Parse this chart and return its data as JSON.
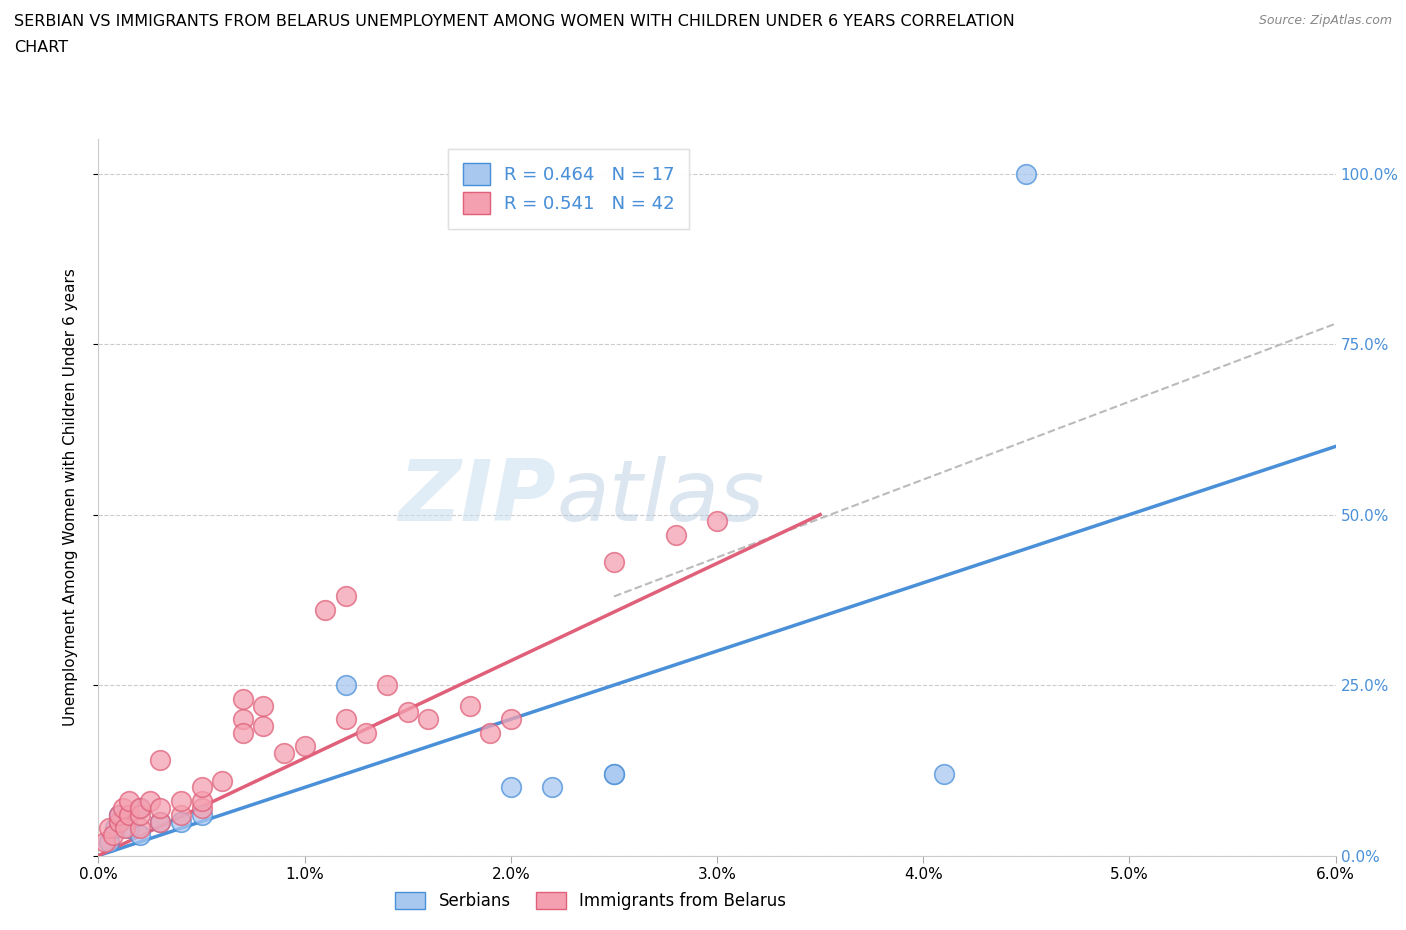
{
  "title_line1": "SERBIAN VS IMMIGRANTS FROM BELARUS UNEMPLOYMENT AMONG WOMEN WITH CHILDREN UNDER 6 YEARS CORRELATION",
  "title_line2": "CHART",
  "source": "Source: ZipAtlas.com",
  "ylabel": "Unemployment Among Women with Children Under 6 years",
  "xlim": [
    0,
    0.06
  ],
  "ylim": [
    0,
    1.05
  ],
  "yticks": [
    0,
    0.25,
    0.5,
    0.75,
    1.0
  ],
  "ytick_labels": [
    "0.0%",
    "25.0%",
    "50.0%",
    "75.0%",
    "100.0%"
  ],
  "xticks": [
    0,
    0.01,
    0.02,
    0.03,
    0.04,
    0.05,
    0.06
  ],
  "xtick_labels": [
    "0.0%",
    "1.0%",
    "2.0%",
    "3.0%",
    "4.0%",
    "5.0%",
    "6.0%"
  ],
  "serbian_R": 0.464,
  "serbian_N": 17,
  "belarus_R": 0.541,
  "belarus_N": 42,
  "serbian_color": "#a8c8f0",
  "belarus_color": "#f4a0b0",
  "serbian_line_color": "#4a90d9",
  "belarus_line_color": "#e0607a",
  "watermark_zip": "ZIP",
  "watermark_atlas": "atlas",
  "serbian_x": [
    0.0005,
    0.0008,
    0.001,
    0.001,
    0.0015,
    0.002,
    0.002,
    0.003,
    0.004,
    0.005,
    0.012,
    0.02,
    0.022,
    0.025,
    0.025,
    0.041,
    0.045
  ],
  "serbian_y": [
    0.02,
    0.04,
    0.05,
    0.06,
    0.04,
    0.03,
    0.07,
    0.05,
    0.05,
    0.06,
    0.25,
    0.1,
    0.1,
    0.12,
    0.12,
    0.12,
    1.0
  ],
  "belarus_x": [
    0.0003,
    0.0005,
    0.0007,
    0.001,
    0.001,
    0.0012,
    0.0013,
    0.0015,
    0.0015,
    0.002,
    0.002,
    0.002,
    0.0025,
    0.003,
    0.003,
    0.003,
    0.004,
    0.004,
    0.005,
    0.005,
    0.005,
    0.006,
    0.007,
    0.007,
    0.007,
    0.008,
    0.008,
    0.009,
    0.01,
    0.011,
    0.012,
    0.012,
    0.013,
    0.014,
    0.015,
    0.016,
    0.018,
    0.019,
    0.02,
    0.025,
    0.028,
    0.03
  ],
  "belarus_y": [
    0.02,
    0.04,
    0.03,
    0.05,
    0.06,
    0.07,
    0.04,
    0.06,
    0.08,
    0.04,
    0.06,
    0.07,
    0.08,
    0.05,
    0.07,
    0.14,
    0.06,
    0.08,
    0.07,
    0.08,
    0.1,
    0.11,
    0.2,
    0.23,
    0.18,
    0.19,
    0.22,
    0.15,
    0.16,
    0.36,
    0.2,
    0.38,
    0.18,
    0.25,
    0.21,
    0.2,
    0.22,
    0.18,
    0.2,
    0.43,
    0.47,
    0.49
  ],
  "serbian_line": {
    "x0": 0.0,
    "y0": 0.0,
    "x1": 0.06,
    "y1": 0.6
  },
  "belarus_line": {
    "x0": 0.0,
    "y0": 0.0,
    "x1": 0.035,
    "y1": 0.5
  },
  "dash_line": {
    "x0": 0.025,
    "y0": 0.38,
    "x1": 0.06,
    "y1": 0.78
  }
}
